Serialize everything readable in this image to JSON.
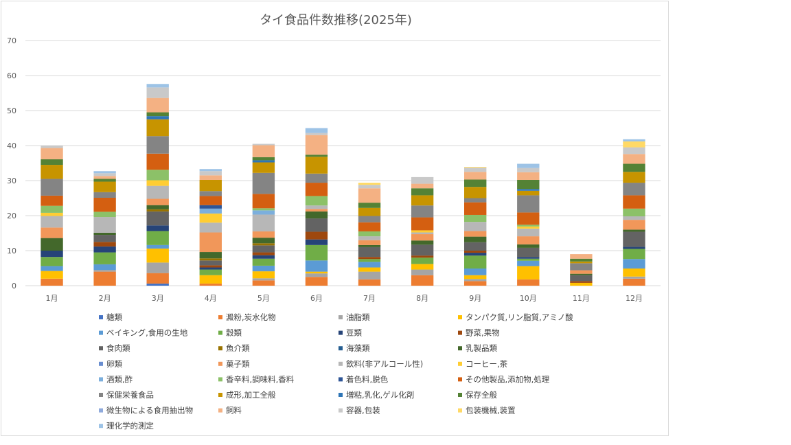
{
  "chart_data": {
    "type": "bar",
    "stacked": true,
    "title": "タイ食品件数推移(2025年)",
    "xlabel": "",
    "ylabel": "",
    "ylim": [
      0,
      70
    ],
    "yticks": [
      0,
      10,
      20,
      30,
      40,
      50,
      60,
      70
    ],
    "grid": true,
    "legend_position": "bottom",
    "categories": [
      "1月",
      "2月",
      "3月",
      "4月",
      "5月",
      "6月",
      "7月",
      "8月",
      "9月",
      "10月",
      "11月",
      "12月"
    ],
    "series": [
      {
        "name": "糖類",
        "color": "#4472C4",
        "values": [
          0,
          0,
          0.6,
          0,
          0,
          0,
          0,
          0,
          0,
          0,
          0,
          0
        ]
      },
      {
        "name": "澱粉,炭水化物",
        "color": "#ED7D31",
        "values": [
          2,
          4,
          3,
          0.6,
          1.5,
          2.5,
          1.8,
          3,
          1.3,
          1.8,
          0,
          2
        ]
      },
      {
        "name": "油脂類",
        "color": "#A5A5A5",
        "values": [
          0,
          0.5,
          3,
          0,
          0.6,
          1,
          2.2,
          1.6,
          0.6,
          0,
          0,
          0.6
        ]
      },
      {
        "name": "タンパク質,リン脂質,アミノ酸",
        "color": "#FFC000",
        "values": [
          2.2,
          0,
          4,
          2.4,
          2,
          0.5,
          1.2,
          1.6,
          1.1,
          3.8,
          0.8,
          2.3
        ]
      },
      {
        "name": "ベイキング,食用の生地",
        "color": "#5B9BD5",
        "values": [
          1.4,
          1.6,
          1,
          0,
          1.6,
          3.2,
          1.6,
          0,
          1.9,
          1.5,
          0,
          2.7
        ]
      },
      {
        "name": "穀類",
        "color": "#70AD47",
        "values": [
          2.6,
          3.4,
          4,
          1.6,
          2,
          4.4,
          0.8,
          1.8,
          3.7,
          0.6,
          0,
          2.9
        ]
      },
      {
        "name": "豆類",
        "color": "#264478",
        "values": [
          1.8,
          1.7,
          1.6,
          0.6,
          1,
          1.6,
          0,
          0,
          0.8,
          0.5,
          0,
          0.6
        ]
      },
      {
        "name": "野菜,果物",
        "color": "#9E480E",
        "values": [
          0,
          1.3,
          0,
          0.6,
          0.8,
          2.2,
          0.6,
          0.6,
          0.6,
          0,
          0.5,
          0
        ]
      },
      {
        "name": "食肉類",
        "color": "#636363",
        "values": [
          0,
          2,
          4,
          1.4,
          2,
          3.8,
          2.8,
          3.1,
          2.4,
          2.6,
          1.7,
          4.3
        ]
      },
      {
        "name": "魚介類",
        "color": "#997300",
        "values": [
          0,
          0,
          0.6,
          0.6,
          0.6,
          0,
          0,
          0,
          0,
          0,
          0,
          0
        ]
      },
      {
        "name": "海藻類",
        "color": "#255E91",
        "values": [
          0,
          0,
          0,
          0,
          0,
          0,
          0,
          0,
          0,
          0,
          0,
          0
        ]
      },
      {
        "name": "乳製品類",
        "color": "#43682B",
        "values": [
          3.6,
          0.6,
          1.2,
          1.8,
          1.6,
          2,
          0.6,
          1.2,
          1.6,
          1,
          0.4,
          0.6
        ]
      },
      {
        "name": "卵類",
        "color": "#698ED0",
        "values": [
          0,
          0,
          0,
          0,
          0,
          0,
          0,
          0,
          0,
          0,
          0,
          0
        ]
      },
      {
        "name": "菓子類",
        "color": "#F1975A",
        "values": [
          3,
          0,
          1.8,
          5.6,
          1.8,
          0.7,
          1.4,
          1.8,
          1.6,
          2.3,
          1,
          2.8
        ]
      },
      {
        "name": "飲料(非アルコール性)",
        "color": "#B7B7B7",
        "values": [
          3.3,
          4.5,
          3.7,
          2.8,
          4.8,
          1,
          1.1,
          0.5,
          2.6,
          2.2,
          0,
          1
        ]
      },
      {
        "name": "コーヒー,茶",
        "color": "#FFCD33",
        "values": [
          0.9,
          0,
          1.6,
          2.6,
          0,
          0,
          0,
          0.6,
          0,
          0.6,
          0,
          0
        ]
      },
      {
        "name": "酒類,酢",
        "color": "#7CAFDD",
        "values": [
          0,
          0,
          0,
          1.4,
          1.2,
          0,
          0,
          0,
          0,
          0,
          0,
          0
        ]
      },
      {
        "name": "香辛料,調味料,香料",
        "color": "#8CC168",
        "values": [
          2,
          1.5,
          3,
          0,
          0.6,
          2.7,
          1.4,
          0,
          2,
          0.5,
          0,
          2.2
        ]
      },
      {
        "name": "着色料,脱色",
        "color": "#2E5597",
        "values": [
          0,
          0,
          0,
          1,
          0,
          0,
          0,
          0,
          0,
          0,
          0,
          0
        ]
      },
      {
        "name": "その他製品,添加物,処理",
        "color": "#D45F11",
        "values": [
          2.9,
          4,
          4.6,
          2.6,
          4.1,
          3.8,
          2.6,
          3.7,
          3.6,
          3.5,
          0,
          3.8
        ]
      },
      {
        "name": "保健栄養食品",
        "color": "#848484",
        "values": [
          4.8,
          1.6,
          5,
          1.4,
          6,
          2.6,
          1.8,
          3.4,
          1.2,
          4.9,
          2,
          3.6
        ]
      },
      {
        "name": "成形,加工全般",
        "color": "#C79400",
        "values": [
          4,
          3,
          4.8,
          3.2,
          3,
          4.8,
          2.3,
          2.9,
          3.2,
          1.3,
          0.5,
          3.1
        ]
      },
      {
        "name": "増粘,乳化,ゲル化剤",
        "color": "#2E75B6",
        "values": [
          0,
          0,
          0.9,
          0,
          0.6,
          0,
          0,
          0,
          0,
          0.5,
          0,
          0
        ]
      },
      {
        "name": "保存全般",
        "color": "#548235",
        "values": [
          1.6,
          0.8,
          1.1,
          0,
          0.9,
          0.6,
          1.5,
          2,
          2.1,
          2.6,
          0.8,
          2.3
        ]
      },
      {
        "name": "微生物による食用抽出物",
        "color": "#8FAADC",
        "values": [
          0,
          0,
          0,
          0,
          0,
          0,
          0,
          0,
          0,
          0,
          0,
          0
        ]
      },
      {
        "name": "飼料",
        "color": "#F4B183",
        "values": [
          3.2,
          0.8,
          4.1,
          1.3,
          3.4,
          5.6,
          4.1,
          1.3,
          2.2,
          2.2,
          1.3,
          2.8
        ]
      },
      {
        "name": "容器,包装",
        "color": "#C9C9C9",
        "values": [
          0.7,
          0.8,
          3,
          1.2,
          0.4,
          0.6,
          1,
          1.9,
          1.2,
          1.2,
          0,
          1.9
        ]
      },
      {
        "name": "包装機械,装置",
        "color": "#FFD966",
        "values": [
          0,
          0,
          0,
          0,
          0,
          0,
          0.6,
          0,
          0.2,
          0,
          0,
          1.7
        ]
      },
      {
        "name": "理化学的測定",
        "color": "#9DC3E6",
        "values": [
          0,
          0.6,
          1,
          0.6,
          0,
          1.4,
          0,
          0,
          0,
          1.2,
          0,
          0.6
        ]
      }
    ]
  }
}
